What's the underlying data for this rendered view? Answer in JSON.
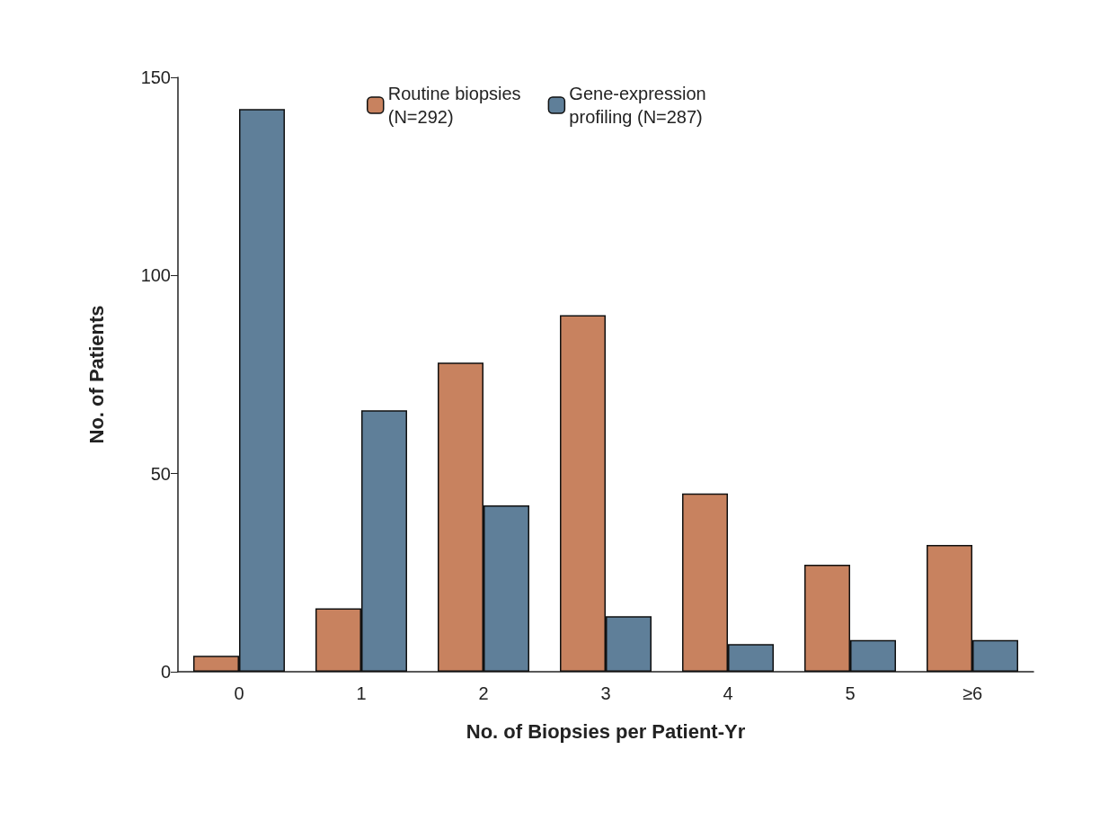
{
  "chart_data": {
    "type": "bar",
    "xlabel": "No. of Biopsies per Patient-Yr",
    "ylabel": "No. of Patients",
    "categories": [
      "0",
      "1",
      "2",
      "3",
      "4",
      "5",
      "≥6"
    ],
    "series": [
      {
        "name": "Routine biopsies\n(N=292)",
        "color": "#c8825f",
        "values": [
          4,
          16,
          78,
          90,
          45,
          27,
          32
        ]
      },
      {
        "name": "Gene-expression\nprofiling (N=287)",
        "color": "#5f7f99",
        "values": [
          142,
          66,
          42,
          14,
          7,
          8,
          8
        ]
      }
    ],
    "ylim": [
      0,
      150
    ],
    "yticks": [
      0,
      50,
      100,
      150
    ],
    "grid": false,
    "legend": "top"
  }
}
